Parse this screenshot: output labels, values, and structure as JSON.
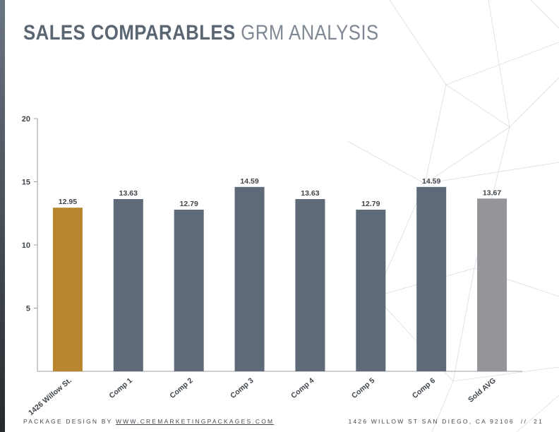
{
  "page": {
    "title_bold": "SALES COMPARABLES",
    "title_light": "GRM ANALYSIS",
    "footer_prefix": "PACKAGE DESIGN BY",
    "footer_link": "WWW.CREMARKETINGPACKAGES.COM",
    "footer_address": "1426 WILLOW ST SAN DIEGO, CA 92106",
    "footer_separator": "//",
    "page_number": "21"
  },
  "colors": {
    "subject": "#b8862e",
    "comp": "#5e6a78",
    "average": "#939598"
  },
  "chart_data": {
    "type": "bar",
    "categories": [
      "1426 Willow St.",
      "Comp 1",
      "Comp 2",
      "Comp 3",
      "Comp 4",
      "Comp 5",
      "Comp 6",
      "Sold AVG"
    ],
    "values": [
      12.95,
      13.63,
      12.79,
      14.59,
      13.63,
      12.79,
      14.59,
      13.67
    ],
    "data_labels": [
      "12.95",
      "13.63",
      "12.79",
      "14.59",
      "13.63",
      "12.79",
      "14.59",
      "13.67"
    ],
    "bar_colors": [
      "subject",
      "comp",
      "comp",
      "comp",
      "comp",
      "comp",
      "comp",
      "average"
    ],
    "yticks": [
      "5",
      "10",
      "15",
      "20"
    ],
    "ylim": [
      0,
      20
    ],
    "title": "",
    "xlabel": "",
    "ylabel": "",
    "grid": false,
    "legend": "none"
  }
}
